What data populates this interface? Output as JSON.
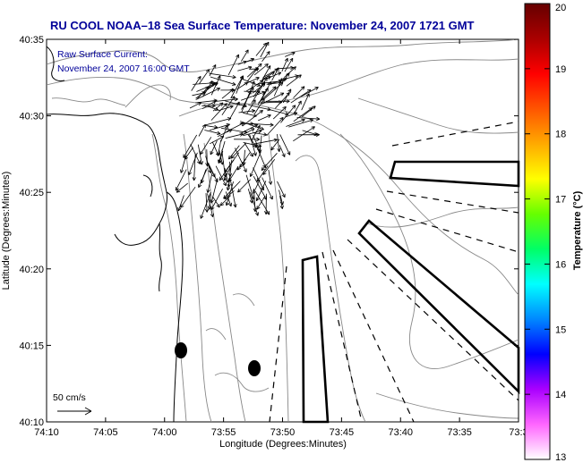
{
  "title": "RU COOL  NOAA–18  Sea Surface Temperature:  November 24, 2007 1721 GMT",
  "current_label_line1": "Raw Surface Current:",
  "current_label_line2": "November 24, 2007 16:00 GMT",
  "scale_label": "50 cm/s",
  "xlabel": "Longitude (Degrees:Minutes)",
  "ylabel": "Latitude (Degrees:Minutes)",
  "x_ticks": [
    "74:10",
    "74:05",
    "74:00",
    "73:55",
    "73:50",
    "73:45",
    "73:40",
    "73:35",
    "73:3"
  ],
  "y_ticks": [
    "40:35",
    "40:30",
    "40:25",
    "40:20",
    "40:15",
    "40:10"
  ],
  "colorbar": {
    "label": "Temperature (°C)",
    "ticks": [
      "20",
      "19",
      "18",
      "17",
      "16",
      "15",
      "14",
      "13"
    ],
    "min": 13,
    "max": 20,
    "colors": [
      "#ffffff",
      "#ff66ff",
      "#aa00ff",
      "#0000ff",
      "#0088ff",
      "#00ffff",
      "#00ff66",
      "#66ff00",
      "#ffff00",
      "#ffaa00",
      "#ff5500",
      "#ff0000",
      "#aa0000",
      "#660000"
    ]
  },
  "theme": {
    "title_color": "#000099",
    "label_color": "#000099",
    "line_color": "#000000",
    "contour_color": "#888888"
  }
}
